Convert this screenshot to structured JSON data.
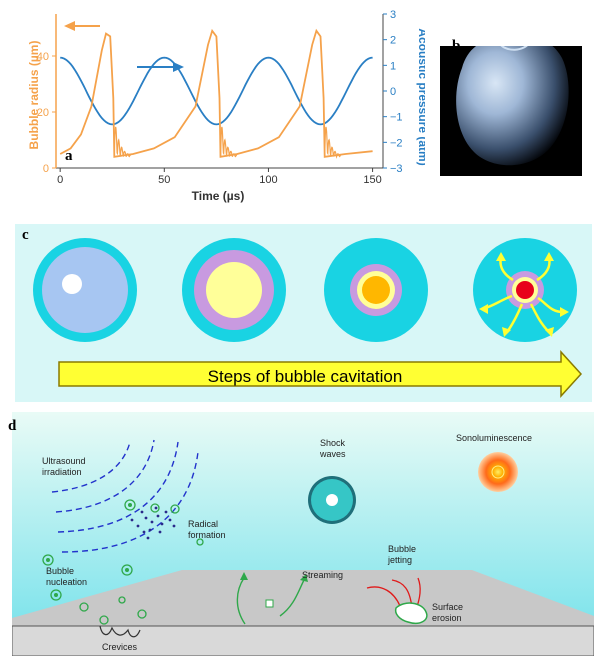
{
  "panel_a": {
    "label": "a",
    "chart_data": {
      "type": "line",
      "xlabel": "Time (µs)",
      "ylabel_left": "Bubble radius (µm)",
      "ylabel_right": "Acoustic pressure (atm)",
      "xlim": [
        -2,
        155
      ],
      "ylim_left": [
        0,
        55
      ],
      "ylim_right": [
        -3,
        3
      ],
      "x_ticks": [
        "0",
        "50",
        "100",
        "150"
      ],
      "y_left_ticks": [
        "0",
        "20",
        "40"
      ],
      "y_right_ticks": [
        "3",
        "2",
        "1",
        "0",
        "−1",
        "−2",
        "−3"
      ],
      "series": [
        {
          "color": "#f5a24b",
          "points": [
            [
              0,
              5
            ],
            [
              5,
              7
            ],
            [
              10,
              12
            ],
            [
              15,
              22
            ],
            [
              20,
              42
            ],
            [
              22,
              48
            ],
            [
              24,
              47
            ],
            [
              25.5,
              25
            ],
            [
              26,
              4
            ],
            [
              35,
              5
            ],
            [
              45,
              7
            ],
            [
              55,
              11
            ],
            [
              65,
              22
            ],
            [
              71,
              44
            ],
            [
              73,
              49
            ],
            [
              75,
              47
            ],
            [
              76.5,
              25
            ],
            [
              77,
              4
            ],
            [
              85,
              5
            ],
            [
              95,
              7
            ],
            [
              105,
              11
            ],
            [
              115,
              22
            ],
            [
              121,
              44
            ],
            [
              123,
              49
            ],
            [
              125,
              47
            ],
            [
              126.5,
              25
            ],
            [
              127,
              4
            ],
            [
              137,
              5
            ],
            [
              150,
              6
            ]
          ]
        },
        {
          "color": "#2a7fc4",
          "amplitude_atm": 1.3,
          "period_us": 50,
          "phase_deg": 90
        }
      ]
    }
  },
  "panel_b": {
    "label": "b"
  },
  "panel_c": {
    "label": "c",
    "arrow_text": "Steps of bubble cavitation"
  },
  "panel_d": {
    "label": "d",
    "texts": {
      "ultrasound": [
        "Ultrasound",
        "irradiation"
      ],
      "radical": [
        "Radical",
        "formation"
      ],
      "shock": [
        "Shock",
        "waves"
      ],
      "sono": "Sonoluminescence",
      "nucleation": [
        "Bubble",
        "nucleation"
      ],
      "streaming": "Streaming",
      "jetting": [
        "Bubble",
        "jetting"
      ],
      "erosion": [
        "Surface",
        "erosion"
      ],
      "crevices": "Crevices"
    }
  },
  "colors": {
    "orange": "#f5a24b",
    "blue": "#2a7fc4",
    "cyan": "#19d3e3",
    "yellow": "#ffff33"
  }
}
